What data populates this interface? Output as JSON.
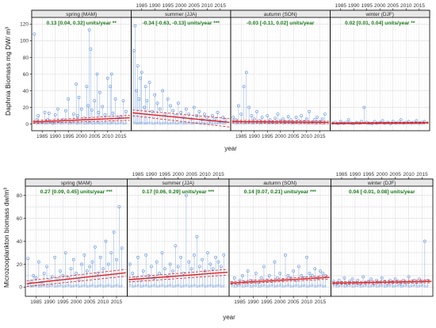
{
  "colors": {
    "points": "#5b8fd9",
    "trend": "#e02020",
    "ci": "#e02020",
    "strip_bg": "#e8e8e8",
    "grid": "#dddddd",
    "trend_text": "#1a7a1a"
  },
  "chart_data": [
    {
      "type": "scatter",
      "ylabel": "Daphnia Biomass mg DW/ m³",
      "xlabel": "year",
      "xlim": [
        1981,
        2019
      ],
      "ylim": [
        -8,
        128
      ],
      "yticks": [
        0,
        20,
        40,
        60,
        80,
        100,
        120
      ],
      "xticks": [
        1985,
        1990,
        1995,
        2000,
        2005,
        2010,
        2015
      ],
      "grid": true,
      "panels": [
        {
          "strip": "spring (MAM)",
          "trend": "0.13 [0.04, 0.32] units/year **",
          "fit": {
            "y0": 2.5,
            "y1": 7.5,
            "lo0": 1.0,
            "lo1": 4.5,
            "hi0": 4.0,
            "hi1": 10.5
          },
          "x": [
            1982,
            1983,
            1983.5,
            1985,
            1986,
            1987,
            1987.6,
            1989,
            1990,
            1991,
            1992,
            1993,
            1994,
            1995,
            1996,
            1997,
            1998,
            1998.5,
            1999,
            2000,
            2001,
            2002,
            2002.6,
            2003,
            2003.5,
            2004,
            2005,
            2006,
            2006.5,
            2007,
            2008,
            2009,
            2010,
            2011,
            2011.5,
            2012,
            2013,
            2014,
            2015,
            2016,
            2017
          ],
          "y": [
            108,
            5,
            10,
            2,
            14,
            5,
            13,
            1,
            11,
            18,
            3,
            5,
            16,
            30,
            3,
            12,
            48,
            10,
            32,
            18,
            7,
            45,
            22,
            113,
            90,
            17,
            28,
            60,
            14,
            38,
            21,
            11,
            55,
            45,
            60,
            13,
            30,
            7,
            9,
            28,
            15
          ]
        },
        {
          "strip": "summer (JJA)",
          "trend": "-0.34 [-0.63, -0.13] units/year ***",
          "fit": {
            "y0": 13.5,
            "y1": 2.0,
            "lo0": 10.0,
            "lo1": -3.5,
            "hi0": 17.0,
            "hi1": 6.5
          },
          "x": [
            1982,
            1982.5,
            1983,
            1983.5,
            1984,
            1984.5,
            1985,
            1986,
            1986.5,
            1987,
            1988,
            1989,
            1990,
            1991,
            1992,
            1993,
            1994,
            1995,
            1996,
            1997,
            1998,
            1999,
            2000,
            2001,
            2002,
            2003,
            2004,
            2005,
            2006,
            2007,
            2008,
            2009,
            2010,
            2011,
            2012,
            2013,
            2014,
            2015,
            2016,
            2017
          ],
          "y": [
            88,
            118,
            40,
            70,
            30,
            55,
            62,
            20,
            45,
            28,
            50,
            15,
            35,
            25,
            18,
            40,
            12,
            30,
            22,
            16,
            10,
            25,
            14,
            8,
            18,
            12,
            6,
            20,
            10,
            15,
            5,
            12,
            8,
            4,
            10,
            6,
            14,
            3,
            8,
            5
          ]
        },
        {
          "strip": "autumn (SON)",
          "trend": "-0.03 [-0.11, 0.02] units/year",
          "fit": {
            "y0": 3.0,
            "y1": 2.0,
            "lo0": 1.5,
            "lo1": 0.5,
            "hi0": 4.5,
            "hi1": 3.5
          },
          "x": [
            1982,
            1983,
            1984,
            1985,
            1986,
            1987,
            1988,
            1989,
            1990,
            1991,
            1992,
            1993,
            1994,
            1995,
            1996,
            1997,
            1998,
            1999,
            2000,
            2001,
            2002,
            2003,
            2004,
            2005,
            2006,
            2007,
            2008,
            2009,
            2010,
            2011,
            2012,
            2013,
            2014,
            2015,
            2016,
            2017
          ],
          "y": [
            8,
            5,
            22,
            12,
            45,
            62,
            20,
            10,
            6,
            15,
            4,
            8,
            3,
            10,
            5,
            2,
            7,
            12,
            4,
            6,
            3,
            9,
            5,
            2,
            8,
            4,
            10,
            3,
            6,
            15,
            2,
            5,
            8,
            3,
            6,
            12
          ]
        },
        {
          "strip": "winter (DJF)",
          "trend": "0.02 [0.01, 0.04] units/year **",
          "fit": {
            "y0": 0.8,
            "y1": 1.6,
            "lo0": 0.2,
            "lo1": 0.9,
            "hi0": 1.5,
            "hi1": 2.4
          },
          "x": [
            1982,
            1983,
            1984,
            1985,
            1986,
            1987,
            1988,
            1989,
            1990,
            1991,
            1992,
            1993,
            1994,
            1995,
            1996,
            1997,
            1998,
            1999,
            2000,
            2001,
            2002,
            2003,
            2004,
            2005,
            2006,
            2007,
            2008,
            2009,
            2010,
            2011,
            2012,
            2013,
            2014,
            2015,
            2016,
            2017
          ],
          "y": [
            1,
            2,
            0.5,
            3,
            1,
            2,
            5,
            1,
            0.5,
            2,
            1,
            3,
            20,
            2,
            1,
            0.5,
            3,
            1,
            2,
            4,
            1,
            2,
            0.5,
            3,
            1,
            2,
            5,
            1,
            2,
            3,
            1,
            2,
            4,
            1,
            2,
            3
          ]
        }
      ]
    },
    {
      "type": "scatter",
      "ylabel": "Microzooplankton biomass dw/m³",
      "xlabel": "year",
      "xlim": [
        1981,
        2019
      ],
      "ylim": [
        -8,
        88
      ],
      "yticks": [
        0,
        10,
        20,
        30,
        40,
        50,
        60,
        70,
        80
      ],
      "xticks": [
        1985,
        1990,
        1995,
        2000,
        2005,
        2010,
        2015
      ],
      "grid": true,
      "panels": [
        {
          "strip": "spring (MAM)",
          "trend": "0.27 [0.09, 0.45] units/year ***",
          "fit": {
            "y0": 3.0,
            "y1": 12.5,
            "lo0": 0.5,
            "lo1": 9.5,
            "hi0": 5.5,
            "hi1": 15.5
          },
          "x": [
            1982,
            1983,
            1984,
            1985,
            1986,
            1987,
            1988,
            1989,
            1990,
            1991,
            1992,
            1993,
            1994,
            1995,
            1996,
            1997,
            1998,
            1999,
            2000,
            2001,
            2002,
            2003,
            2004,
            2005,
            2006,
            2007,
            2008,
            2009,
            2010,
            2011,
            2012,
            2013,
            2014,
            2015,
            2016,
            2017
          ],
          "y": [
            25,
            5,
            10,
            8,
            22,
            4,
            12,
            18,
            6,
            9,
            26,
            7,
            14,
            10,
            30,
            8,
            16,
            24,
            12,
            6,
            20,
            28,
            14,
            18,
            22,
            35,
            12,
            26,
            16,
            40,
            20,
            30,
            48,
            24,
            70,
            34
          ]
        },
        {
          "strip": "summer (JJA)",
          "trend": "0.17 [0.06, 0.29] units/year ***",
          "fit": {
            "y0": 6.5,
            "y1": 13.0,
            "lo0": 4.5,
            "lo1": 10.5,
            "hi0": 8.5,
            "hi1": 15.5
          },
          "x": [
            1982,
            1983,
            1984,
            1985,
            1986,
            1987,
            1988,
            1989,
            1990,
            1991,
            1992,
            1993,
            1994,
            1995,
            1996,
            1997,
            1998,
            1999,
            2000,
            2001,
            2002,
            2003,
            2004,
            2005,
            2006,
            2007,
            2008,
            2009,
            2010,
            2011,
            2012,
            2013,
            2014,
            2015,
            2016,
            2017
          ],
          "y": [
            20,
            12,
            8,
            26,
            6,
            14,
            28,
            10,
            18,
            8,
            22,
            12,
            30,
            16,
            9,
            20,
            14,
            36,
            18,
            26,
            12,
            80,
            22,
            16,
            28,
            44,
            18,
            24,
            14,
            30,
            20,
            16,
            26,
            22,
            18,
            28
          ]
        },
        {
          "strip": "autumn (SON)",
          "trend": "0.14 [0.07, 0.21] units/year ***",
          "fit": {
            "y0": 3.5,
            "y1": 8.5,
            "lo0": 2.5,
            "lo1": 7.0,
            "hi0": 4.8,
            "hi1": 10.0
          },
          "x": [
            1982,
            1983,
            1984,
            1985,
            1986,
            1987,
            1988,
            1989,
            1990,
            1991,
            1992,
            1993,
            1994,
            1995,
            1996,
            1997,
            1998,
            1999,
            2000,
            2001,
            2002,
            2003,
            2004,
            2005,
            2006,
            2007,
            2008,
            2009,
            2010,
            2011,
            2012,
            2013,
            2014,
            2015,
            2016,
            2017
          ],
          "y": [
            4,
            8,
            3,
            6,
            10,
            4,
            14,
            6,
            5,
            12,
            4,
            8,
            18,
            6,
            10,
            5,
            22,
            8,
            12,
            6,
            28,
            10,
            8,
            14,
            6,
            18,
            10,
            8,
            26,
            12,
            10,
            16,
            8,
            14,
            12,
            10
          ]
        },
        {
          "strip": "winter (DJF)",
          "trend": "0.04 [-0.01, 0.08] units/year",
          "fit": {
            "y0": 3.5,
            "y1": 5.0,
            "lo0": 2.5,
            "lo1": 3.8,
            "hi0": 4.5,
            "hi1": 6.2
          },
          "x": [
            1982,
            1983,
            1984,
            1985,
            1986,
            1987,
            1988,
            1989,
            1990,
            1991,
            1992,
            1993,
            1994,
            1995,
            1996,
            1997,
            1998,
            1999,
            2000,
            2001,
            2002,
            2003,
            2004,
            2005,
            2006,
            2007,
            2008,
            2009,
            2010,
            2011,
            2012,
            2013,
            2014,
            2015,
            2016,
            2017
          ],
          "y": [
            5,
            3,
            6,
            4,
            8,
            3,
            5,
            7,
            4,
            6,
            3,
            9,
            4,
            5,
            7,
            3,
            6,
            4,
            8,
            5,
            3,
            6,
            4,
            7,
            5,
            3,
            6,
            4,
            9,
            5,
            6,
            4,
            7,
            5,
            40,
            6
          ]
        }
      ]
    }
  ]
}
